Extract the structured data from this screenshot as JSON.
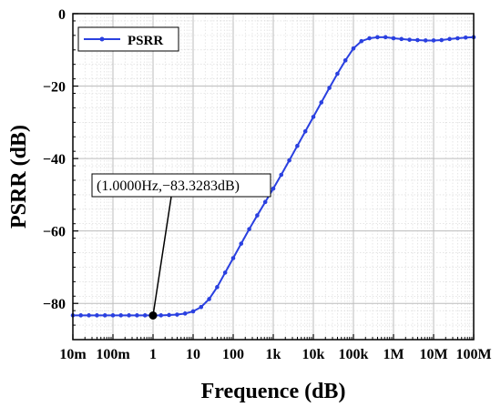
{
  "chart_data": {
    "type": "line",
    "xlabel": "Frequence (dB)",
    "ylabel": "PSRR (dB)",
    "x_scale": "log",
    "xlim": [
      0.01,
      100000000
    ],
    "ylim": [
      -90,
      0
    ],
    "x_ticks": [
      0.01,
      0.1,
      1,
      10,
      100,
      1000,
      10000,
      100000,
      1000000,
      10000000,
      100000000
    ],
    "x_tick_labels": [
      "10m",
      "100m",
      "1",
      "10",
      "100",
      "1k",
      "10k",
      "100k",
      "1M",
      "10M",
      "100M"
    ],
    "y_ticks": [
      -80,
      -60,
      -40,
      -20,
      0
    ],
    "y_tick_labels": [
      "−80",
      "−60",
      "−40",
      "−20",
      "0"
    ],
    "grid": true,
    "legend_position": "top-left",
    "color": "#2a40e0",
    "series": [
      {
        "name": "PSRR",
        "x": [
          0.01,
          0.0158,
          0.0251,
          0.0398,
          0.0631,
          0.1,
          0.158,
          0.251,
          0.398,
          0.631,
          1,
          1.58,
          2.51,
          3.98,
          6.31,
          10,
          15.8,
          25.1,
          39.8,
          63.1,
          100,
          158,
          251,
          398,
          631,
          1000,
          1580,
          2510,
          3980,
          6310,
          10000,
          15800,
          25100,
          39800,
          63100,
          100000,
          158000,
          251000,
          398000,
          631000,
          1000000,
          1580000,
          2510000,
          3980000,
          6310000,
          10000000,
          15800000,
          25100000,
          39800000,
          63100000,
          100000000
        ],
        "y": [
          -83.3,
          -83.3,
          -83.3,
          -83.3,
          -83.3,
          -83.3,
          -83.3,
          -83.3,
          -83.3,
          -83.3,
          -83.3,
          -83.3,
          -83.2,
          -83.1,
          -82.8,
          -82.2,
          -81.0,
          -78.8,
          -75.5,
          -71.5,
          -67.5,
          -63.5,
          -59.5,
          -55.7,
          -52.0,
          -48.3,
          -44.5,
          -40.5,
          -36.5,
          -32.5,
          -28.5,
          -24.5,
          -20.5,
          -16.6,
          -12.9,
          -9.6,
          -7.6,
          -6.8,
          -6.5,
          -6.5,
          -6.8,
          -7.0,
          -7.2,
          -7.3,
          -7.4,
          -7.4,
          -7.3,
          -7.0,
          -6.8,
          -6.6,
          -6.5
        ]
      }
    ],
    "annotation": {
      "text": "(1.0000Hz,−83.3283dB)",
      "x": 1,
      "y": -83.3283
    }
  }
}
